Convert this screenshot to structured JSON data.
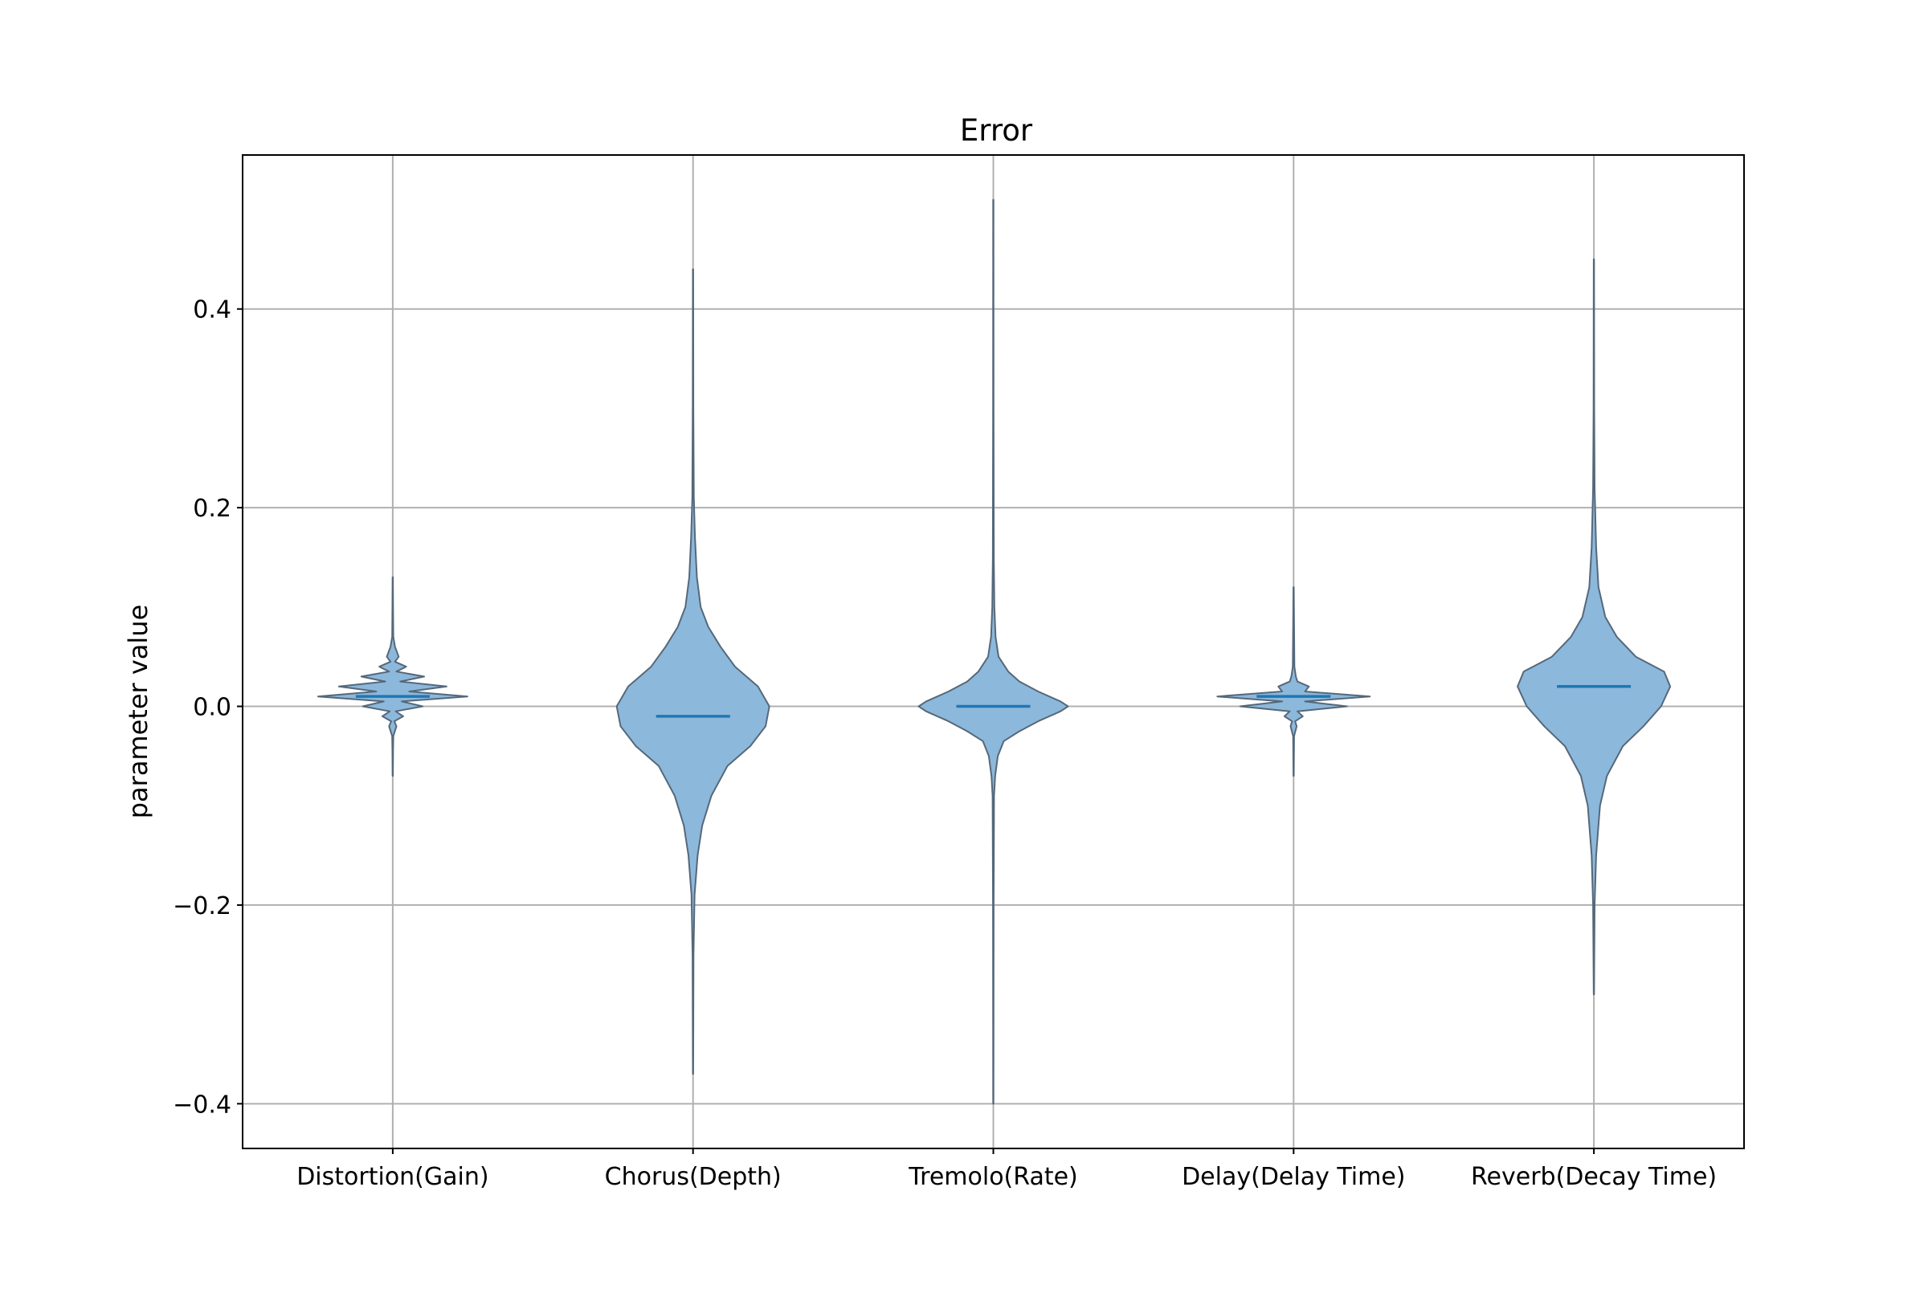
{
  "chart_data": {
    "type": "violin",
    "title": "Error",
    "xlabel": "",
    "ylabel": "parameter value",
    "ylim": [
      -0.445,
      0.555
    ],
    "yticks": [
      -0.4,
      -0.2,
      0.0,
      0.2,
      0.4
    ],
    "ytick_labels": [
      "−0.4",
      "−0.2",
      "0.0",
      "0.2",
      "0.4"
    ],
    "grid": true,
    "categories": [
      "Distortion(Gain)",
      "Chorus(Depth)",
      "Tremolo(Rate)",
      "Delay(Delay Time)",
      "Reverb(Decay Time)"
    ],
    "medians": [
      0.01,
      -0.01,
      0.0,
      0.01,
      0.02
    ],
    "mins": [
      -0.07,
      -0.37,
      -0.4,
      -0.07,
      -0.29
    ],
    "maxs": [
      0.13,
      0.44,
      0.51,
      0.12,
      0.45
    ],
    "density_widths": [
      [
        [
          -0.07,
          0.002
        ],
        [
          -0.045,
          0.004
        ],
        [
          -0.03,
          0.008
        ],
        [
          -0.02,
          0.05
        ],
        [
          -0.015,
          0.02
        ],
        [
          -0.01,
          0.14
        ],
        [
          -0.005,
          0.04
        ],
        [
          0.0,
          0.4
        ],
        [
          0.005,
          0.12
        ],
        [
          0.01,
          1.0
        ],
        [
          0.015,
          0.22
        ],
        [
          0.02,
          0.72
        ],
        [
          0.025,
          0.1
        ],
        [
          0.03,
          0.42
        ],
        [
          0.035,
          0.05
        ],
        [
          0.04,
          0.18
        ],
        [
          0.045,
          0.03
        ],
        [
          0.05,
          0.08
        ],
        [
          0.06,
          0.03
        ],
        [
          0.07,
          0.008
        ],
        [
          0.1,
          0.004
        ],
        [
          0.13,
          0.002
        ]
      ],
      [
        [
          -0.37,
          0.002
        ],
        [
          -0.25,
          0.006
        ],
        [
          -0.19,
          0.02
        ],
        [
          -0.15,
          0.06
        ],
        [
          -0.12,
          0.12
        ],
        [
          -0.09,
          0.24
        ],
        [
          -0.06,
          0.45
        ],
        [
          -0.04,
          0.75
        ],
        [
          -0.02,
          0.95
        ],
        [
          0.0,
          1.0
        ],
        [
          0.02,
          0.85
        ],
        [
          0.04,
          0.55
        ],
        [
          0.06,
          0.36
        ],
        [
          0.08,
          0.2
        ],
        [
          0.1,
          0.1
        ],
        [
          0.13,
          0.05
        ],
        [
          0.17,
          0.025
        ],
        [
          0.21,
          0.01
        ],
        [
          0.3,
          0.004
        ],
        [
          0.44,
          0.002
        ]
      ],
      [
        [
          -0.4,
          0.002
        ],
        [
          -0.2,
          0.004
        ],
        [
          -0.09,
          0.01
        ],
        [
          -0.07,
          0.025
        ],
        [
          -0.05,
          0.06
        ],
        [
          -0.035,
          0.14
        ],
        [
          -0.025,
          0.35
        ],
        [
          -0.015,
          0.6
        ],
        [
          -0.005,
          0.9
        ],
        [
          0.0,
          1.0
        ],
        [
          0.005,
          0.9
        ],
        [
          0.015,
          0.6
        ],
        [
          0.025,
          0.35
        ],
        [
          0.035,
          0.2
        ],
        [
          0.05,
          0.07
        ],
        [
          0.07,
          0.03
        ],
        [
          0.1,
          0.014
        ],
        [
          0.15,
          0.006
        ],
        [
          0.3,
          0.003
        ],
        [
          0.51,
          0.002
        ]
      ],
      [
        [
          -0.07,
          0.002
        ],
        [
          -0.03,
          0.006
        ],
        [
          -0.02,
          0.04
        ],
        [
          -0.015,
          0.02
        ],
        [
          -0.01,
          0.12
        ],
        [
          -0.005,
          0.05
        ],
        [
          0.0,
          0.7
        ],
        [
          0.005,
          0.15
        ],
        [
          0.01,
          1.0
        ],
        [
          0.015,
          0.15
        ],
        [
          0.02,
          0.2
        ],
        [
          0.025,
          0.05
        ],
        [
          0.03,
          0.03
        ],
        [
          0.04,
          0.01
        ],
        [
          0.12,
          0.002
        ]
      ],
      [
        [
          -0.29,
          0.002
        ],
        [
          -0.2,
          0.01
        ],
        [
          -0.15,
          0.03
        ],
        [
          -0.1,
          0.08
        ],
        [
          -0.07,
          0.17
        ],
        [
          -0.04,
          0.38
        ],
        [
          -0.02,
          0.65
        ],
        [
          0.0,
          0.88
        ],
        [
          0.02,
          1.0
        ],
        [
          0.035,
          0.92
        ],
        [
          0.05,
          0.55
        ],
        [
          0.07,
          0.3
        ],
        [
          0.09,
          0.15
        ],
        [
          0.12,
          0.06
        ],
        [
          0.16,
          0.03
        ],
        [
          0.22,
          0.01
        ],
        [
          0.3,
          0.004
        ],
        [
          0.45,
          0.002
        ]
      ]
    ],
    "violin_halfwidths_px": null,
    "colors": {
      "body": "#8cb8db",
      "edge": "#55687a",
      "median": "#1f77b4",
      "grid": "#b0b0b0"
    }
  }
}
